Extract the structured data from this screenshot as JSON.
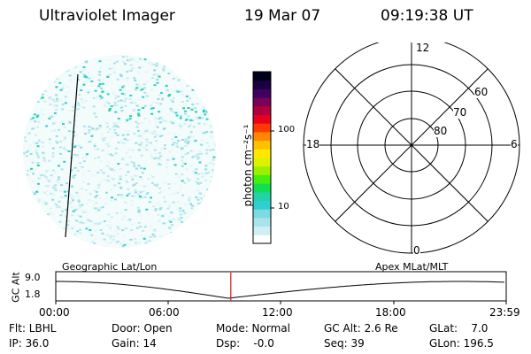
{
  "header": {
    "title": "Ultraviolet Imager",
    "date": "19 Mar 07",
    "time": "09:19:38 UT"
  },
  "colorbar": {
    "unit_label": "photon cm⁻²s⁻¹",
    "tick_labels": [
      "100",
      "10"
    ],
    "scale": "log",
    "colors": [
      "#ffffff",
      "#cfeff2",
      "#a8e4ea",
      "#7fd9e0",
      "#2fcfcf",
      "#22d3a6",
      "#11dd55",
      "#44ee11",
      "#9bf000",
      "#ddf200",
      "#ffe800",
      "#ffc000",
      "#ff8800",
      "#ff3a00",
      "#e8001e",
      "#b0003c",
      "#7a0058",
      "#3f0060",
      "#1a0040",
      "#000018"
    ]
  },
  "polar": {
    "mlt_labels": [
      "12",
      "18",
      "6",
      "0"
    ],
    "lat_labels": [
      "60",
      "70",
      "80"
    ]
  },
  "altplot": {
    "left_label": "Geographic Lat/Lon",
    "right_label": "Apex  MLat/MLT",
    "y_axis_label": "GC Alt",
    "y_ticks": [
      "9.0",
      "1.8"
    ],
    "x_ticks": [
      "00:00",
      "06:00",
      "12:00",
      "18:00",
      "23:59"
    ],
    "marker_time": "09:19:38",
    "marker_color": "#dd1111"
  },
  "status": {
    "filter": "Flt: LBHL",
    "door": "Door: Open",
    "mode": "Mode: Normal",
    "gc_alt": "GC Alt: 2.6 Re",
    "glat": "GLat:    7.0",
    "ip": "IP: 36.0",
    "gain": "Gain: 14",
    "dsp": "Dsp:    -0.0",
    "seq": "Seq: 39",
    "glon": "GLon: 196.5"
  }
}
